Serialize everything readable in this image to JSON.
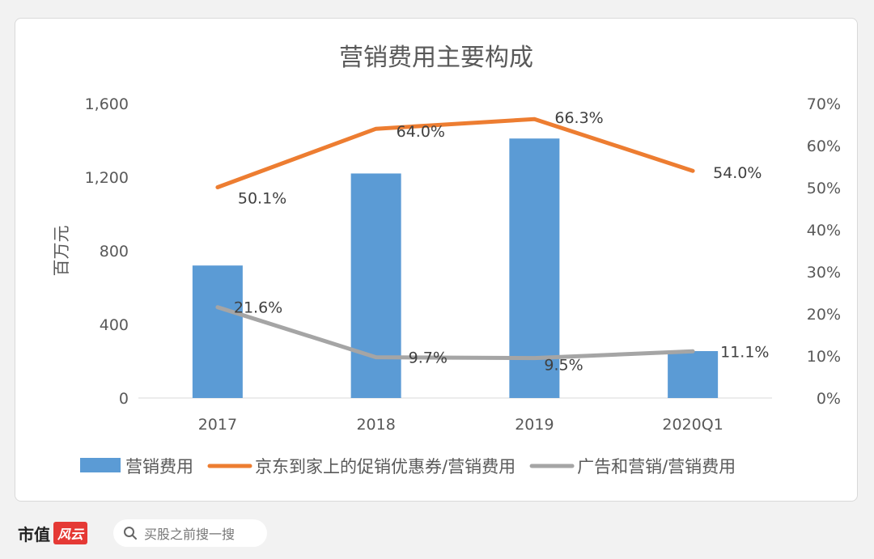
{
  "chart_data": {
    "type": "bar+line",
    "title": "营销费用主要构成",
    "categories": [
      "2017",
      "2018",
      "2019",
      "2020Q1"
    ],
    "y_left": {
      "label": "百万元",
      "lim": [
        0,
        1600
      ],
      "ticks": [
        "0",
        "400",
        "800",
        "1,200",
        "1,600"
      ]
    },
    "y_right": {
      "label": "",
      "lim": [
        0,
        70
      ],
      "ticks": [
        "0%",
        "10%",
        "20%",
        "30%",
        "40%",
        "50%",
        "60%",
        "70%"
      ]
    },
    "series": [
      {
        "name": "营销费用",
        "type": "bar",
        "axis": "left",
        "color": "#5b9bd5",
        "values": [
          720,
          1220,
          1410,
          255
        ]
      },
      {
        "name": "京东到家上的促销优惠券/营销费用",
        "type": "line",
        "axis": "right",
        "color": "#ed7d31",
        "values": [
          50.1,
          64.0,
          66.3,
          54.0
        ],
        "labels": [
          "50.1%",
          "64.0%",
          "66.3%",
          "54.0%"
        ]
      },
      {
        "name": "广告和营销/营销费用",
        "type": "line",
        "axis": "right",
        "color": "#a5a5a5",
        "values": [
          21.6,
          9.7,
          9.5,
          11.1
        ],
        "labels": [
          "21.6%",
          "9.7%",
          "9.5%",
          "11.1%"
        ]
      }
    ],
    "grid": false,
    "legend": "bottom"
  },
  "footer": {
    "brand": "市值",
    "brand_mark": "风云",
    "search_placeholder": "买股之前搜一搜",
    "search_icon": "search-icon"
  }
}
